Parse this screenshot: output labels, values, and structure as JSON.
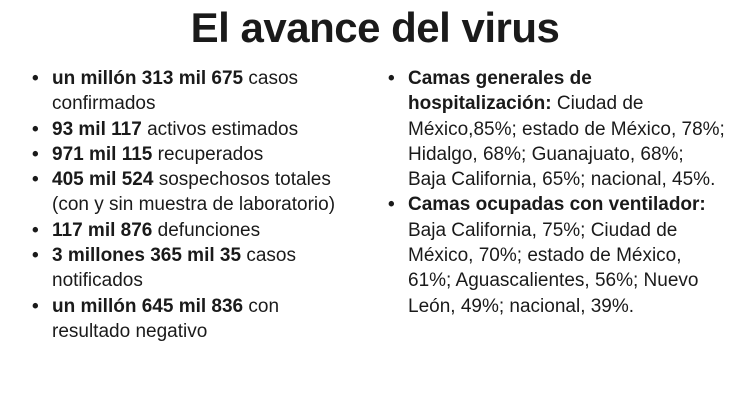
{
  "title": "El avance del virus",
  "left_items": [
    {
      "bold": "un millón 313 mil 675",
      "rest": " casos confirmados"
    },
    {
      "bold": "93 mil 117",
      "rest": " activos estimados"
    },
    {
      "bold": "971 mil 115",
      "rest": " recuperados"
    },
    {
      "bold": "405 mil 524",
      "rest": " sospechosos totales (con y sin muestra de laboratorio)"
    },
    {
      "bold": "117 mil 876",
      "rest": " defunciones"
    },
    {
      "bold": "3 millones 365 mil 35",
      "rest": " casos notificados"
    },
    {
      "bold": "un millón 645 mil 836",
      "rest": " con resultado negativo"
    }
  ],
  "right_items": [
    {
      "bold": "Camas generales de hospitalización:",
      "rest": " Ciudad de México,85%; estado de México, 78%; Hidalgo, 68%; Guanajuato, 68%; Baja California, 65%; nacional, 45%."
    },
    {
      "bold": "Camas ocupadas con ventilador:",
      "rest": " Baja California, 75%; Ciudad de México, 70%; estado de México, 61%; Aguascalientes, 56%; Nuevo León, 49%; nacional, 39%."
    }
  ],
  "bullet_symbol": "•"
}
